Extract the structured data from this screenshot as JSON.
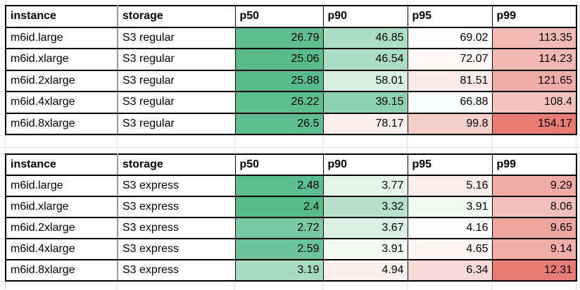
{
  "page": {
    "background": "#FFFFFF",
    "gridline_color": "#E1E1E1",
    "table_border_color": "#000000",
    "first_column_divider_color": "#999999"
  },
  "color_scale": {
    "min_color": "#57BB8A",
    "mid_color": "#FFFFFF",
    "max_color": "#E67C73"
  },
  "tables": [
    {
      "headers": {
        "instance": "instance",
        "storage": "storage",
        "p50": "p50",
        "p90": "p90",
        "p95": "p95",
        "p99": "p99"
      },
      "rows": [
        {
          "instance": "m6id.large",
          "storage": "S3 regular",
          "p50": {
            "v": "26.79",
            "bg": "#5EBE8F"
          },
          "p90": {
            "v": "46.85",
            "bg": "#ACDEC5"
          },
          "p95": {
            "v": "69.02",
            "bg": "#FFFDFD"
          },
          "p99": {
            "v": "113.35",
            "bg": "#F2BAB5"
          }
        },
        {
          "instance": "m6id.xlarge",
          "storage": "S3 regular",
          "p50": {
            "v": "25.06",
            "bg": "#57BB8A"
          },
          "p90": {
            "v": "46.54",
            "bg": "#ABDDC5"
          },
          "p95": {
            "v": "72.07",
            "bg": "#FEF9F8"
          },
          "p99": {
            "v": "114.23",
            "bg": "#F2B9B4"
          }
        },
        {
          "instance": "m6id.2xlarge",
          "storage": "S3 regular",
          "p50": {
            "v": "25.88",
            "bg": "#5ABC8C"
          },
          "p90": {
            "v": "58.01",
            "bg": "#D8EFE4"
          },
          "p95": {
            "v": "81.51",
            "bg": "#FBEAE9"
          },
          "p99": {
            "v": "121.65",
            "bg": "#EFADA8"
          }
        },
        {
          "instance": "m6id.4xlarge",
          "storage": "S3 regular",
          "p50": {
            "v": "26.22",
            "bg": "#5CBD8D"
          },
          "p90": {
            "v": "39.15",
            "bg": "#8ED1B0"
          },
          "p95": {
            "v": "66.88",
            "bg": "#FBFDFC"
          },
          "p99": {
            "v": "108.4",
            "bg": "#F3C2BD"
          }
        },
        {
          "instance": "m6id.8xlarge",
          "storage": "S3 regular",
          "p50": {
            "v": "26.5",
            "bg": "#5DBD8E"
          },
          "p90": {
            "v": "78.17",
            "bg": "#FCEFEE"
          },
          "p95": {
            "v": "99.8",
            "bg": "#F6CFCB"
          },
          "p99": {
            "v": "154.17",
            "bg": "#E67C73"
          }
        }
      ]
    },
    {
      "headers": {
        "instance": "instance",
        "storage": "storage",
        "p50": "p50",
        "p90": "p90",
        "p95": "p95",
        "p99": "p99"
      },
      "rows": [
        {
          "instance": "m6id.large",
          "storage": "S3 express",
          "p50": {
            "v": "2.48",
            "bg": "#5FBE90"
          },
          "p90": {
            "v": "3.77",
            "bg": "#E4F4EC"
          },
          "p95": {
            "v": "5.16",
            "bg": "#FCEDEC"
          },
          "p99": {
            "v": "9.29",
            "bg": "#EFACA6"
          }
        },
        {
          "instance": "m6id.xlarge",
          "storage": "S3 express",
          "p50": {
            "v": "2.4",
            "bg": "#57BB8A"
          },
          "p90": {
            "v": "3.32",
            "bg": "#B6E1CC"
          },
          "p95": {
            "v": "3.91",
            "bg": "#F2FAF6"
          },
          "p99": {
            "v": "8.06",
            "bg": "#F3BFBB"
          }
        },
        {
          "instance": "m6id.2xlarge",
          "storage": "S3 express",
          "p50": {
            "v": "2.72",
            "bg": "#78C8A1"
          },
          "p90": {
            "v": "3.67",
            "bg": "#DAF0E5"
          },
          "p95": {
            "v": "4.16",
            "bg": "#FFFDFD"
          },
          "p99": {
            "v": "9.65",
            "bg": "#EEA6A0"
          }
        },
        {
          "instance": "m6id.4xlarge",
          "storage": "S3 express",
          "p50": {
            "v": "2.59",
            "bg": "#6AC398"
          },
          "p90": {
            "v": "3.91",
            "bg": "#F2FAF6"
          },
          "p95": {
            "v": "4.65",
            "bg": "#FDF5F5"
          },
          "p99": {
            "v": "9.14",
            "bg": "#F0AEA9"
          }
        },
        {
          "instance": "m6id.8xlarge",
          "storage": "S3 express",
          "p50": {
            "v": "3.19",
            "bg": "#A8DCC2"
          },
          "p90": {
            "v": "4.94",
            "bg": "#FCF1F0"
          },
          "p95": {
            "v": "6.34",
            "bg": "#F8DBD8"
          },
          "p99": {
            "v": "12.31",
            "bg": "#E67C73"
          }
        }
      ]
    }
  ]
}
